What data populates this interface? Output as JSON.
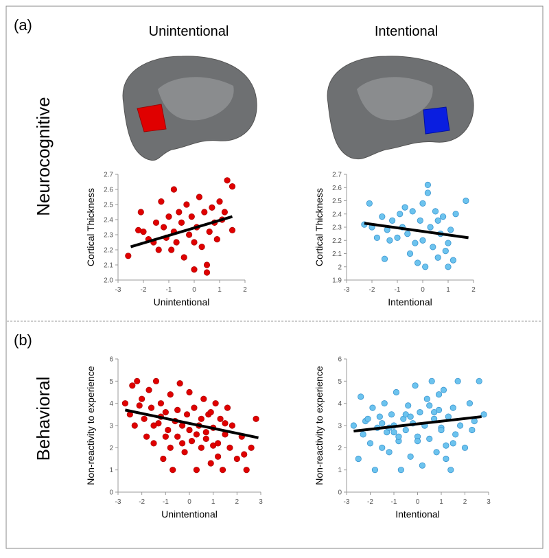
{
  "figure": {
    "panel_labels": [
      "(a)",
      "(b)"
    ],
    "row_labels": [
      "Neurocognitive",
      "Behavioral"
    ],
    "column_titles": [
      "Unintentional",
      "Intentional"
    ],
    "column_title_colors": [
      "#e01010",
      "#1f7fcf"
    ]
  },
  "chart_data": [
    {
      "type": "scatter",
      "xlabel": "Unintentional",
      "ylabel": "Cortical Thickness",
      "color": "#e00000",
      "edge_color": "#b00000",
      "x": [
        -2.6,
        -2.2,
        -2.1,
        -2.0,
        -1.8,
        -1.6,
        -1.5,
        -1.4,
        -1.3,
        -1.2,
        -1.1,
        -1.0,
        -0.9,
        -0.8,
        -0.8,
        -0.7,
        -0.6,
        -0.5,
        -0.4,
        -0.3,
        -0.2,
        -0.1,
        0,
        0,
        0.1,
        0.2,
        0.3,
        0.4,
        0.5,
        0.5,
        0.6,
        0.7,
        0.8,
        0.9,
        1.0,
        1.1,
        1.2,
        1.3,
        1.5,
        1.5
      ],
      "y": [
        2.16,
        2.33,
        2.45,
        2.32,
        2.27,
        2.25,
        2.38,
        2.2,
        2.52,
        2.35,
        2.28,
        2.42,
        2.2,
        2.6,
        2.32,
        2.25,
        2.45,
        2.38,
        2.15,
        2.5,
        2.3,
        2.42,
        2.07,
        2.25,
        2.35,
        2.55,
        2.22,
        2.45,
        2.1,
        2.05,
        2.32,
        2.48,
        2.38,
        2.27,
        2.52,
        2.4,
        2.45,
        2.66,
        2.62,
        2.33
      ],
      "trendline": {
        "x": [
          -2.5,
          1.5
        ],
        "y": [
          2.22,
          2.42
        ]
      },
      "xlim": [
        -3,
        2
      ],
      "xticks": [
        -3,
        -2,
        -1,
        0,
        1,
        2
      ],
      "ylim": [
        2.0,
        2.7
      ],
      "yticks": [
        {
          "value": 2.0,
          "label": "2.0"
        },
        2.1,
        2.2,
        2.3,
        2.4,
        2.5,
        2.6,
        2.7
      ]
    },
    {
      "type": "scatter",
      "xlabel": "Intentional",
      "ylabel": "Cortical Thickness",
      "color": "#6cc3ee",
      "edge_color": "#3a95d0",
      "x": [
        -2.3,
        -2.1,
        -2.0,
        -1.8,
        -1.6,
        -1.5,
        -1.4,
        -1.2,
        -1.0,
        -0.9,
        -0.8,
        -0.6,
        -0.5,
        -0.4,
        -0.3,
        -0.2,
        -0.1,
        0,
        0,
        0.1,
        0.2,
        0.2,
        0.3,
        0.4,
        0.5,
        0.6,
        0.7,
        0.8,
        0.9,
        1.0,
        1.1,
        1.2,
        1.3,
        1.7,
        -0.7,
        0.6,
        -1.3,
        1.0
      ],
      "y": [
        2.32,
        2.48,
        2.3,
        2.22,
        2.38,
        2.06,
        2.28,
        2.35,
        2.22,
        2.4,
        2.3,
        2.25,
        2.1,
        2.42,
        2.18,
        2.03,
        2.35,
        2.48,
        2.2,
        2.0,
        2.62,
        2.56,
        2.3,
        2.15,
        2.42,
        2.07,
        2.25,
        2.38,
        2.12,
        2.0,
        2.28,
        2.05,
        2.4,
        2.5,
        2.45,
        2.35,
        2.2,
        2.18
      ],
      "trendline": {
        "x": [
          -2.3,
          1.8
        ],
        "y": [
          2.33,
          2.22
        ]
      },
      "xlim": [
        -3,
        2
      ],
      "xticks": [
        -3,
        -2,
        -1,
        0,
        1,
        2
      ],
      "ylim": [
        1.9,
        2.7
      ],
      "yticks": [
        1.9,
        2,
        2.1,
        2.2,
        2.3,
        2.4,
        2.5,
        2.6,
        2.7
      ]
    },
    {
      "type": "scatter",
      "xlabel": "Unintentional",
      "ylabel": "Non-reactivity to experience",
      "color": "#e00000",
      "edge_color": "#b00000",
      "x": [
        -2.7,
        -2.5,
        -2.4,
        -2.3,
        -2.2,
        -2.0,
        -1.9,
        -1.8,
        -1.7,
        -1.6,
        -1.5,
        -1.4,
        -1.3,
        -1.2,
        -1.1,
        -1.0,
        -0.9,
        -0.8,
        -0.7,
        -0.6,
        -0.5,
        -0.4,
        -0.3,
        -0.2,
        -0.1,
        0,
        0.1,
        0.2,
        0.3,
        0.4,
        0.5,
        0.6,
        0.7,
        0.8,
        0.9,
        1.0,
        1.1,
        1.2,
        1.3,
        1.4,
        1.5,
        1.6,
        1.7,
        1.8,
        2.0,
        2.2,
        2.4,
        2.6,
        2.8,
        -1.5,
        -1.0,
        -0.5,
        0,
        0.5,
        1.0,
        -2.1,
        -0.8,
        0.3,
        1.2,
        -1.2,
        0.7,
        1.5,
        -0.3,
        0.9,
        2.3
      ],
      "y": [
        4.0,
        3.5,
        4.8,
        3.0,
        5.0,
        4.2,
        3.3,
        2.5,
        4.6,
        3.8,
        2.2,
        5.0,
        3.1,
        4.0,
        1.5,
        3.6,
        2.8,
        4.4,
        1.0,
        3.2,
        2.5,
        4.9,
        3.0,
        1.8,
        3.5,
        4.5,
        2.3,
        3.8,
        1.0,
        3.0,
        2.0,
        4.2,
        2.7,
        3.5,
        1.3,
        2.9,
        4.0,
        2.2,
        3.3,
        1.0,
        2.6,
        3.8,
        2.0,
        3.0,
        1.5,
        2.5,
        1.0,
        2.0,
        3.3,
        3.0,
        2.5,
        3.7,
        2.8,
        3.3,
        2.1,
        3.9,
        2.0,
        2.6,
        1.6,
        3.4,
        2.4,
        3.1,
        2.2,
        3.6,
        1.7
      ],
      "trendline": {
        "x": [
          -2.7,
          2.9
        ],
        "y": [
          3.7,
          2.45
        ]
      },
      "xlim": [
        -3,
        3
      ],
      "xticks": [
        -3,
        -2,
        -1,
        0,
        1,
        2,
        3
      ],
      "ylim": [
        0,
        6
      ],
      "yticks": [
        0,
        1,
        2,
        3,
        4,
        5,
        6
      ]
    },
    {
      "type": "scatter",
      "xlabel": "Intentional",
      "ylabel": "Non-reactivity to experience",
      "color": "#6cc3ee",
      "edge_color": "#3a95d0",
      "x": [
        -2.7,
        -2.5,
        -2.4,
        -2.3,
        -2.2,
        -2.0,
        -1.9,
        -1.8,
        -1.7,
        -1.6,
        -1.5,
        -1.4,
        -1.3,
        -1.2,
        -1.1,
        -1.0,
        -0.9,
        -0.8,
        -0.7,
        -0.6,
        -0.5,
        -0.4,
        -0.3,
        -0.2,
        -0.1,
        0,
        0.1,
        0.2,
        0.3,
        0.4,
        0.5,
        0.6,
        0.7,
        0.8,
        0.9,
        1.0,
        1.1,
        1.2,
        1.3,
        1.4,
        1.5,
        1.6,
        1.7,
        1.8,
        2.0,
        2.2,
        2.4,
        2.6,
        2.8,
        -1.5,
        -1.0,
        -0.5,
        0,
        0.5,
        1.0,
        -2.1,
        -0.8,
        0.3,
        1.2,
        -1.2,
        0.7,
        1.5,
        -0.3,
        0.9,
        2.3
      ],
      "y": [
        3.0,
        1.5,
        4.3,
        2.6,
        3.2,
        2.2,
        3.8,
        1.0,
        2.9,
        3.4,
        2.0,
        4.0,
        2.7,
        1.8,
        3.5,
        3.0,
        4.5,
        2.3,
        1.0,
        3.3,
        2.8,
        3.9,
        1.6,
        3.1,
        4.8,
        2.5,
        3.6,
        1.2,
        3.0,
        4.2,
        2.4,
        5.0,
        3.3,
        1.8,
        3.7,
        2.9,
        4.6,
        2.1,
        3.4,
        1.0,
        3.8,
        2.6,
        5.0,
        3.0,
        2.0,
        4.0,
        3.2,
        5.0,
        3.5,
        3.1,
        2.7,
        3.5,
        2.3,
        3.9,
        2.8,
        3.3,
        2.5,
        3.0,
        1.5,
        2.9,
        3.6,
        2.2,
        3.4,
        4.4,
        2.8
      ],
      "trendline": {
        "x": [
          -2.7,
          2.7
        ],
        "y": [
          2.75,
          3.4
        ]
      },
      "xlim": [
        -3,
        3
      ],
      "xticks": [
        -3,
        -2,
        -1,
        0,
        1,
        2,
        3
      ],
      "ylim": [
        0,
        6
      ],
      "yticks": [
        0,
        1,
        2,
        3,
        4,
        5,
        6
      ]
    }
  ]
}
